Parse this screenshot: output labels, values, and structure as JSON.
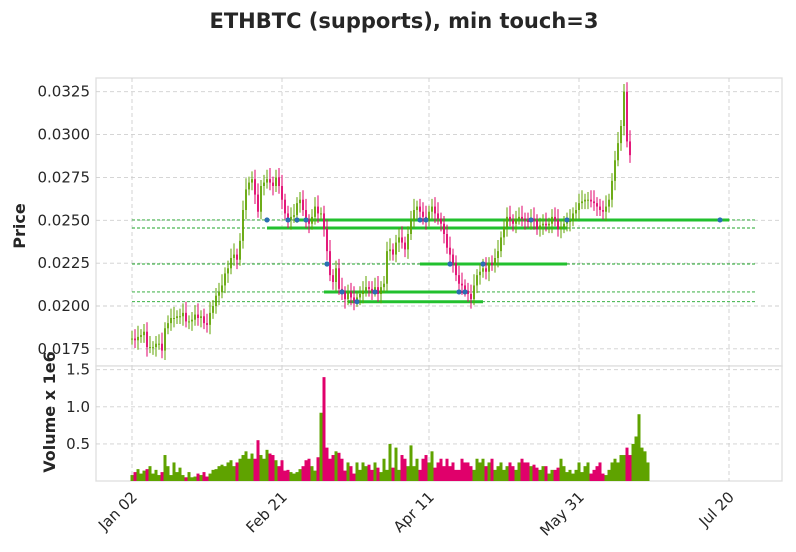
{
  "title": "ETHBTC (supports), min touch=3",
  "colors": {
    "up": "#5fa300",
    "down": "#e0006b",
    "support": "#22c02e",
    "marker": "#2a6fb2",
    "grid": "#cfcfcf",
    "frame": "#dedede"
  },
  "chart_data": [
    {
      "type": "candlestick",
      "panel": "price",
      "ylabel": "Price",
      "ylim": [
        0.0165,
        0.0333
      ],
      "yticks": [
        0.0175,
        0.02,
        0.0225,
        0.025,
        0.0275,
        0.03,
        0.0325
      ],
      "ytick_labels": [
        "0.0175",
        "0.0200",
        "0.0225",
        "0.0250",
        "0.0275",
        "0.0300",
        "0.0325"
      ],
      "xticks": [
        {
          "day": 0,
          "label": "Jan 02"
        },
        {
          "day": 50,
          "label": "Feb 21"
        },
        {
          "day": 99,
          "label": "Apr 11"
        },
        {
          "day": 149,
          "label": "May 31"
        },
        {
          "day": 199,
          "label": "Jul 20"
        }
      ],
      "grid": true,
      "close": [
        0.0181,
        0.018,
        0.0182,
        0.0183,
        0.0185,
        0.0176,
        0.0176,
        0.0176,
        0.0178,
        0.0178,
        0.0174,
        0.0187,
        0.019,
        0.0193,
        0.0193,
        0.0194,
        0.0194,
        0.0196,
        0.0191,
        0.0191,
        0.0192,
        0.0195,
        0.0193,
        0.0194,
        0.019,
        0.0189,
        0.0196,
        0.02,
        0.0206,
        0.0208,
        0.0212,
        0.0219,
        0.0222,
        0.0228,
        0.023,
        0.0227,
        0.0238,
        0.0256,
        0.0268,
        0.0272,
        0.0274,
        0.0265,
        0.0255,
        0.027,
        0.0272,
        0.0274,
        0.0272,
        0.027,
        0.0275,
        0.027,
        0.0262,
        0.0254,
        0.025,
        0.0252,
        0.0253,
        0.026,
        0.0262,
        0.0256,
        0.025,
        0.0248,
        0.0252,
        0.0258,
        0.0254,
        0.0254,
        0.0245,
        0.0232,
        0.0218,
        0.0214,
        0.0222,
        0.021,
        0.0208,
        0.0204,
        0.0208,
        0.0205,
        0.0203,
        0.0205,
        0.0207,
        0.0209,
        0.0211,
        0.021,
        0.0209,
        0.0211,
        0.0207,
        0.0211,
        0.0213,
        0.0232,
        0.0233,
        0.023,
        0.0237,
        0.024,
        0.0237,
        0.0233,
        0.0242,
        0.025,
        0.0256,
        0.0258,
        0.0255,
        0.0252,
        0.025,
        0.0255,
        0.0258,
        0.0254,
        0.0251,
        0.0248,
        0.0242,
        0.0234,
        0.023,
        0.0225,
        0.0218,
        0.0213,
        0.0212,
        0.0209,
        0.0207,
        0.0204,
        0.0212,
        0.0218,
        0.022,
        0.0222,
        0.022,
        0.0225,
        0.0224,
        0.0228,
        0.0232,
        0.024,
        0.0246,
        0.0252,
        0.025,
        0.0248,
        0.0251,
        0.0252,
        0.0251,
        0.025,
        0.0249,
        0.0251,
        0.025,
        0.0245,
        0.0247,
        0.0248,
        0.0247,
        0.0248,
        0.0252,
        0.025,
        0.0245,
        0.0246,
        0.0248,
        0.0249,
        0.025,
        0.0254,
        0.0256,
        0.026,
        0.0261,
        0.0262,
        0.0262,
        0.0261,
        0.026,
        0.0258,
        0.0256,
        0.0255,
        0.0258,
        0.0262,
        0.0273,
        0.0285,
        0.0295,
        0.0305,
        0.0325,
        0.0296,
        0.0288
      ],
      "supports": [
        {
          "level": 0.02502,
          "from_day": 55,
          "to_day": 199,
          "thin_from_day": 0
        },
        {
          "level": 0.02455,
          "from_day": 45,
          "to_day": 145,
          "thin_from_day": 0
        },
        {
          "level": 0.02245,
          "from_day": 96,
          "to_day": 145,
          "thin_from_day": 0
        },
        {
          "level": 0.02082,
          "from_day": 64,
          "to_day": 109,
          "thin_from_day": 0
        },
        {
          "level": 0.02025,
          "from_day": 72,
          "to_day": 117,
          "thin_from_day": 0
        }
      ],
      "touch_days": [
        45,
        52,
        55,
        58,
        65,
        70,
        75,
        81,
        96,
        98,
        106,
        109,
        111,
        117,
        133,
        145,
        196
      ]
    },
    {
      "type": "bar",
      "panel": "volume",
      "ylabel": "Volume x 1e6",
      "ylim": [
        0,
        1.55
      ],
      "yticks": [
        0.5,
        1.0,
        1.5
      ],
      "ytick_labels": [
        "0.5",
        "1.0",
        "1.5"
      ],
      "grid": true,
      "volume": [
        0.08,
        0.12,
        0.16,
        0.1,
        0.14,
        0.16,
        0.2,
        0.1,
        0.15,
        0.08,
        0.12,
        0.35,
        0.2,
        0.08,
        0.25,
        0.12,
        0.18,
        0.08,
        0.05,
        0.12,
        0.05,
        0.06,
        0.1,
        0.08,
        0.12,
        0.06,
        0.1,
        0.15,
        0.16,
        0.2,
        0.22,
        0.2,
        0.25,
        0.28,
        0.2,
        0.25,
        0.3,
        0.35,
        0.4,
        0.3,
        0.37,
        0.3,
        0.55,
        0.35,
        0.3,
        0.42,
        0.37,
        0.35,
        0.28,
        0.2,
        0.28,
        0.14,
        0.15,
        0.12,
        0.1,
        0.12,
        0.16,
        0.2,
        0.28,
        0.3,
        0.2,
        0.14,
        0.32,
        0.92,
        1.4,
        0.45,
        0.3,
        0.35,
        0.4,
        0.38,
        0.3,
        0.14,
        0.25,
        0.2,
        0.1,
        0.25,
        0.15,
        0.25,
        0.2,
        0.22,
        0.15,
        0.25,
        0.18,
        0.12,
        0.3,
        0.15,
        0.5,
        0.18,
        0.45,
        0.15,
        0.35,
        0.3,
        0.2,
        0.48,
        0.2,
        0.3,
        0.15,
        0.3,
        0.35,
        0.25,
        0.4,
        0.18,
        0.25,
        0.3,
        0.2,
        0.3,
        0.2,
        0.25,
        0.15,
        0.15,
        0.3,
        0.25,
        0.25,
        0.2,
        0.15,
        0.3,
        0.25,
        0.3,
        0.2,
        0.25,
        0.3,
        0.15,
        0.2,
        0.25,
        0.15,
        0.2,
        0.25,
        0.2,
        0.15,
        0.25,
        0.3,
        0.25,
        0.25,
        0.2,
        0.22,
        0.18,
        0.15,
        0.2,
        0.2,
        0.1,
        0.15,
        0.15,
        0.18,
        0.3,
        0.2,
        0.12,
        0.15,
        0.1,
        0.15,
        0.25,
        0.12,
        0.2,
        0.25,
        0.1,
        0.15,
        0.2,
        0.25,
        0.1,
        0.08,
        0.15,
        0.25,
        0.3,
        0.25,
        0.35,
        0.35,
        0.45,
        0.35,
        0.5,
        0.6,
        0.9,
        0.45,
        0.4,
        0.25
      ]
    }
  ]
}
